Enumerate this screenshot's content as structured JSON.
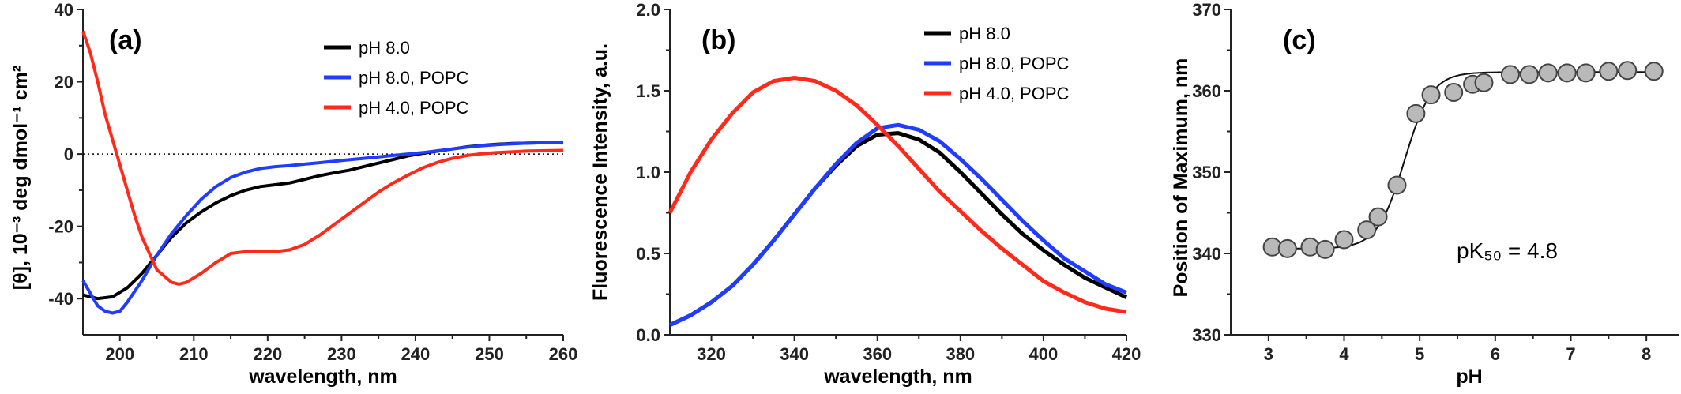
{
  "chart_data": [
    {
      "id": "a",
      "type": "line",
      "panel_label": "(a)",
      "xlabel": "wavelength, nm",
      "ylabel": "[θ], 10⁻³ deg dmol⁻¹ cm²",
      "xlim": [
        195,
        260
      ],
      "ylim": [
        -50,
        40
      ],
      "xticks": [
        200,
        210,
        220,
        230,
        240,
        250,
        260
      ],
      "yticks": [
        40,
        20,
        0,
        -20,
        -40
      ],
      "zero_line": true,
      "legend_position": "top-right",
      "series": [
        {
          "name": "pH 8.0",
          "color": "#000000",
          "x": [
            195,
            197,
            199,
            201,
            203,
            205,
            207,
            209,
            211,
            213,
            215,
            217,
            219,
            221,
            223,
            225,
            227,
            229,
            231,
            233,
            235,
            237,
            239,
            241,
            243,
            245,
            247,
            249,
            251,
            253,
            255,
            257,
            260
          ],
          "y": [
            -39,
            -40,
            -39.5,
            -37,
            -33,
            -28,
            -23,
            -19,
            -16,
            -13.5,
            -11.5,
            -10,
            -9,
            -8.5,
            -8,
            -7,
            -6,
            -5.2,
            -4.5,
            -3.5,
            -2.5,
            -1.5,
            -0.5,
            0.2,
            0.8,
            1.4,
            2,
            2.4,
            2.7,
            2.9,
            3,
            3.1,
            3.2
          ]
        },
        {
          "name": "pH 8.0, POPC",
          "color": "#1f3cff",
          "x": [
            195,
            197,
            198,
            199,
            200,
            201,
            203,
            205,
            207,
            209,
            211,
            213,
            215,
            217,
            219,
            221,
            223,
            225,
            227,
            229,
            231,
            233,
            235,
            237,
            239,
            241,
            243,
            245,
            247,
            249,
            251,
            253,
            255,
            257,
            260
          ],
          "y": [
            -35,
            -42,
            -43.5,
            -44,
            -43.5,
            -41,
            -35,
            -28,
            -22,
            -17,
            -12.5,
            -9,
            -6.5,
            -5,
            -4,
            -3.5,
            -3.2,
            -2.8,
            -2.4,
            -2,
            -1.6,
            -1.2,
            -0.8,
            -0.4,
            0,
            0.4,
            0.9,
            1.4,
            1.9,
            2.3,
            2.6,
            2.8,
            3,
            3.1,
            3.2
          ]
        },
        {
          "name": "pH 4.0, POPC",
          "color": "#ff2a1a",
          "x": [
            195,
            196,
            197,
            198,
            199,
            200,
            201,
            202,
            203,
            205,
            207,
            208,
            209,
            211,
            213,
            215,
            217,
            219,
            221,
            223,
            225,
            227,
            229,
            231,
            233,
            235,
            237,
            239,
            241,
            243,
            245,
            247,
            249,
            251,
            253,
            255,
            257,
            260
          ],
          "y": [
            34,
            28,
            20,
            11,
            4,
            -3,
            -10,
            -17,
            -23,
            -32,
            -35.5,
            -36,
            -35.5,
            -33,
            -30,
            -27.5,
            -27,
            -27,
            -27,
            -26.5,
            -25,
            -22.5,
            -19.5,
            -16.5,
            -13.5,
            -10.5,
            -8,
            -5.8,
            -3.8,
            -2.3,
            -1.2,
            -0.4,
            0.1,
            0.4,
            0.6,
            0.8,
            0.9,
            1
          ]
        }
      ]
    },
    {
      "id": "b",
      "type": "line",
      "panel_label": "(b)",
      "xlabel": "wavelength, nm",
      "ylabel": "Fluorescence Intensity, a.u.",
      "xlim": [
        310,
        420
      ],
      "ylim": [
        0,
        2.0
      ],
      "xticks": [
        320,
        340,
        360,
        380,
        400,
        420
      ],
      "yticks": [
        0.0,
        0.5,
        1.0,
        1.5,
        2.0
      ],
      "ytick_labels": [
        "0.0",
        "0.5",
        "1.0",
        "1.5",
        "2.0"
      ],
      "legend_position": "top-right",
      "series": [
        {
          "name": "pH 8.0",
          "color": "#000000",
          "x": [
            310,
            315,
            320,
            325,
            330,
            335,
            340,
            345,
            350,
            355,
            360,
            365,
            370,
            375,
            380,
            385,
            390,
            395,
            400,
            405,
            410,
            415,
            420
          ],
          "y": [
            0.06,
            0.12,
            0.2,
            0.3,
            0.43,
            0.58,
            0.74,
            0.9,
            1.04,
            1.16,
            1.23,
            1.24,
            1.2,
            1.12,
            1.0,
            0.87,
            0.74,
            0.62,
            0.52,
            0.43,
            0.35,
            0.29,
            0.23
          ]
        },
        {
          "name": "pH 8.0, POPC",
          "color": "#1f3cff",
          "x": [
            310,
            315,
            320,
            325,
            330,
            335,
            340,
            345,
            350,
            355,
            360,
            365,
            370,
            375,
            380,
            385,
            390,
            395,
            400,
            405,
            410,
            415,
            420
          ],
          "y": [
            0.06,
            0.12,
            0.2,
            0.3,
            0.43,
            0.58,
            0.74,
            0.9,
            1.05,
            1.18,
            1.27,
            1.29,
            1.26,
            1.19,
            1.08,
            0.96,
            0.83,
            0.7,
            0.58,
            0.47,
            0.39,
            0.31,
            0.26
          ]
        },
        {
          "name": "pH 4.0, POPC",
          "color": "#ff2a1a",
          "x": [
            310,
            315,
            320,
            325,
            330,
            335,
            340,
            345,
            350,
            355,
            360,
            365,
            370,
            375,
            380,
            385,
            390,
            395,
            400,
            405,
            410,
            415,
            420
          ],
          "y": [
            0.75,
            1.0,
            1.2,
            1.36,
            1.49,
            1.56,
            1.58,
            1.56,
            1.5,
            1.41,
            1.29,
            1.16,
            1.02,
            0.88,
            0.76,
            0.64,
            0.53,
            0.43,
            0.33,
            0.26,
            0.2,
            0.16,
            0.14
          ]
        }
      ]
    },
    {
      "id": "c",
      "type": "scatter",
      "panel_label": "(c)",
      "xlabel": "pH",
      "ylabel": "Position of Maximum, nm",
      "xlim": [
        2.5,
        8.5
      ],
      "ylim": [
        330,
        370
      ],
      "xticks": [
        3,
        4,
        5,
        6,
        7,
        8
      ],
      "yticks": [
        330,
        340,
        350,
        360,
        370
      ],
      "annotation": "pK₅₀ = 4.8",
      "points": {
        "x": [
          3.05,
          3.25,
          3.55,
          3.75,
          4.0,
          4.3,
          4.45,
          4.7,
          4.95,
          5.15,
          5.45,
          5.7,
          5.85,
          6.2,
          6.45,
          6.7,
          6.95,
          7.2,
          7.5,
          7.75,
          8.1
        ],
        "y": [
          340.8,
          340.6,
          340.8,
          340.5,
          341.7,
          342.9,
          344.5,
          348.4,
          357.2,
          359.5,
          359.8,
          360.8,
          361.0,
          362.0,
          362.0,
          362.2,
          362.2,
          362.2,
          362.4,
          362.5,
          362.4
        ]
      },
      "fit": {
        "bottom": 340.6,
        "top": 362.3,
        "pK50": 4.8,
        "slope": 0.18
      },
      "marker_color": "#b9b9b9",
      "marker_edge": "#444444"
    }
  ]
}
